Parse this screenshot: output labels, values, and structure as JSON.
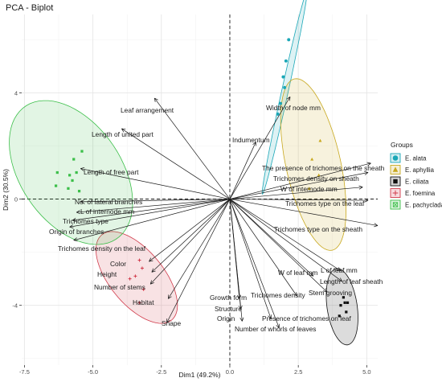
{
  "chart_data": {
    "type": "scatter",
    "title": "PCA - Biplot",
    "xlabel": "Dim1 (49.2%)",
    "ylabel": "Dim2 (30.5%)",
    "xlim": [
      -7.6,
      5.4
    ],
    "ylim": [
      -6.25,
      6.95
    ],
    "x_ticks": [
      -7.5,
      -5.0,
      -2.5,
      0.0,
      2.5,
      5.0
    ],
    "x_tick_labels": [
      "-7.5",
      "-5.0",
      "-2.5",
      "0.0",
      "2.5",
      "5.0"
    ],
    "y_ticks": [
      -4,
      0,
      4
    ],
    "y_tick_labels": [
      "-4",
      "0",
      "4"
    ],
    "grid": true,
    "legend": {
      "title": "Groups",
      "position": "right"
    },
    "groups": [
      {
        "name": "E. alata",
        "color": "#1aa7b7",
        "marker": "circle",
        "points": [
          [
            2.05,
            5.2
          ],
          [
            1.95,
            4.6
          ],
          [
            2.0,
            4.2
          ],
          [
            1.85,
            3.6
          ],
          [
            2.15,
            6.0
          ],
          [
            1.75,
            3.2
          ]
        ],
        "ellipse": {
          "cx": 2.0,
          "cy": 4.0,
          "rx": 3.9,
          "ry": 0.12,
          "angle_deg": 78
        }
      },
      {
        "name": "E. aphyllia",
        "color": "#c8a81e",
        "marker": "triangle",
        "points": [
          [
            3.3,
            2.2
          ],
          [
            3.0,
            1.5
          ],
          [
            3.25,
            0.9
          ],
          [
            2.9,
            0.4
          ]
        ],
        "ellipse": {
          "cx": 3.05,
          "cy": 1.3,
          "rx": 1.0,
          "ry": 3.3,
          "angle_deg": 12
        }
      },
      {
        "name": "E. ciliata",
        "color": "#111111",
        "marker": "square",
        "points": [
          [
            4.15,
            -3.7
          ],
          [
            4.2,
            -3.9
          ],
          [
            4.3,
            -3.9
          ],
          [
            4.05,
            -4.0
          ],
          [
            4.25,
            -4.25
          ],
          [
            4.0,
            -4.4
          ]
        ],
        "ellipse": {
          "cx": 4.1,
          "cy": -4.05,
          "rx": 0.55,
          "ry": 1.45,
          "angle_deg": 8
        }
      },
      {
        "name": "E. foemina",
        "color": "#d13a4a",
        "marker": "plus",
        "points": [
          [
            -3.3,
            -2.3
          ],
          [
            -3.2,
            -2.6
          ],
          [
            -3.65,
            -3.0
          ],
          [
            -3.45,
            -2.9
          ],
          [
            -3.15,
            -3.4
          ],
          [
            -3.3,
            -3.9
          ]
        ],
        "ellipse": {
          "cx": -3.4,
          "cy": -2.95,
          "rx": 1.0,
          "ry": 2.05,
          "angle_deg": 38
        }
      },
      {
        "name": "E. pachyclada",
        "color": "#3cbf4a",
        "marker": "square-x",
        "points": [
          [
            -5.4,
            1.8
          ],
          [
            -5.7,
            1.5
          ],
          [
            -6.3,
            1.0
          ],
          [
            -5.6,
            1.0
          ],
          [
            -5.85,
            0.9
          ],
          [
            -5.75,
            0.7
          ],
          [
            -5.9,
            0.4
          ],
          [
            -6.35,
            0.5
          ],
          [
            -5.5,
            0.3
          ]
        ],
        "ellipse": {
          "cx": -5.8,
          "cy": 1.0,
          "rx": 1.85,
          "ry": 3.0,
          "angle_deg": 33
        }
      }
    ],
    "variables": [
      {
        "label": "Leaf arrangement",
        "x": -2.75,
        "y": 3.8
      },
      {
        "label": "Length of united part",
        "x": -3.95,
        "y": 2.65
      },
      {
        "label": "Length of free part",
        "x": -5.45,
        "y": 1.15
      },
      {
        "label": "No. of lateral branches",
        "x": -5.45,
        "y": -0.1
      },
      {
        "label": "L of internode mm",
        "x": -5.6,
        "y": -0.5
      },
      {
        "label": "Trichomes type",
        "x": -5.75,
        "y": -0.8
      },
      {
        "label": "Origin of branches",
        "x": -5.85,
        "y": -1.05
      },
      {
        "label": "Trichomes density on the leaf",
        "x": -5.7,
        "y": -1.55
      },
      {
        "label": "Color",
        "x": -2.95,
        "y": -2.35
      },
      {
        "label": "Height",
        "x": -2.85,
        "y": -2.75
      },
      {
        "label": "Number of stems",
        "x": -2.9,
        "y": -3.2
      },
      {
        "label": "Habitat",
        "x": -2.25,
        "y": -3.75
      },
      {
        "label": "Shape",
        "x": -2.3,
        "y": -4.65
      },
      {
        "label": "Width of node mm",
        "x": 2.2,
        "y": 3.85
      },
      {
        "label": "Indumentum",
        "x": 0.95,
        "y": 2.15
      },
      {
        "label": "The presence of trichomes on the sheath",
        "x": 5.15,
        "y": 1.35
      },
      {
        "label": "Trichomes density on sheath",
        "x": 5.05,
        "y": 1.0
      },
      {
        "label": "W of internode mm",
        "x": 4.85,
        "y": 0.45
      },
      {
        "label": "Trichomes type on the leaf",
        "x": 5.05,
        "y": -0.05
      },
      {
        "label": "Trichomes type on the sheath",
        "x": 5.4,
        "y": -1.0
      },
      {
        "label": "L of leaf mm",
        "x": 4.05,
        "y": -2.7
      },
      {
        "label": "W of leaf mm",
        "x": 3.05,
        "y": -2.9
      },
      {
        "label": "Length of leaf sheath",
        "x": 4.1,
        "y": -3.1
      },
      {
        "label": "Stem grooving",
        "x": 3.55,
        "y": -3.5
      },
      {
        "label": "Trichomes density",
        "x": 2.45,
        "y": -3.65
      },
      {
        "label": "Growth form",
        "x": 0.35,
        "y": -3.75
      },
      {
        "label": "Structure",
        "x": 0.4,
        "y": -4.15
      },
      {
        "label": "Origin",
        "x": 0.45,
        "y": -4.6
      },
      {
        "label": "Presence of trichomes on leaf",
        "x": 1.5,
        "y": -4.5
      },
      {
        "label": "Number of whorls of leaves",
        "x": 1.8,
        "y": -4.85
      }
    ]
  }
}
